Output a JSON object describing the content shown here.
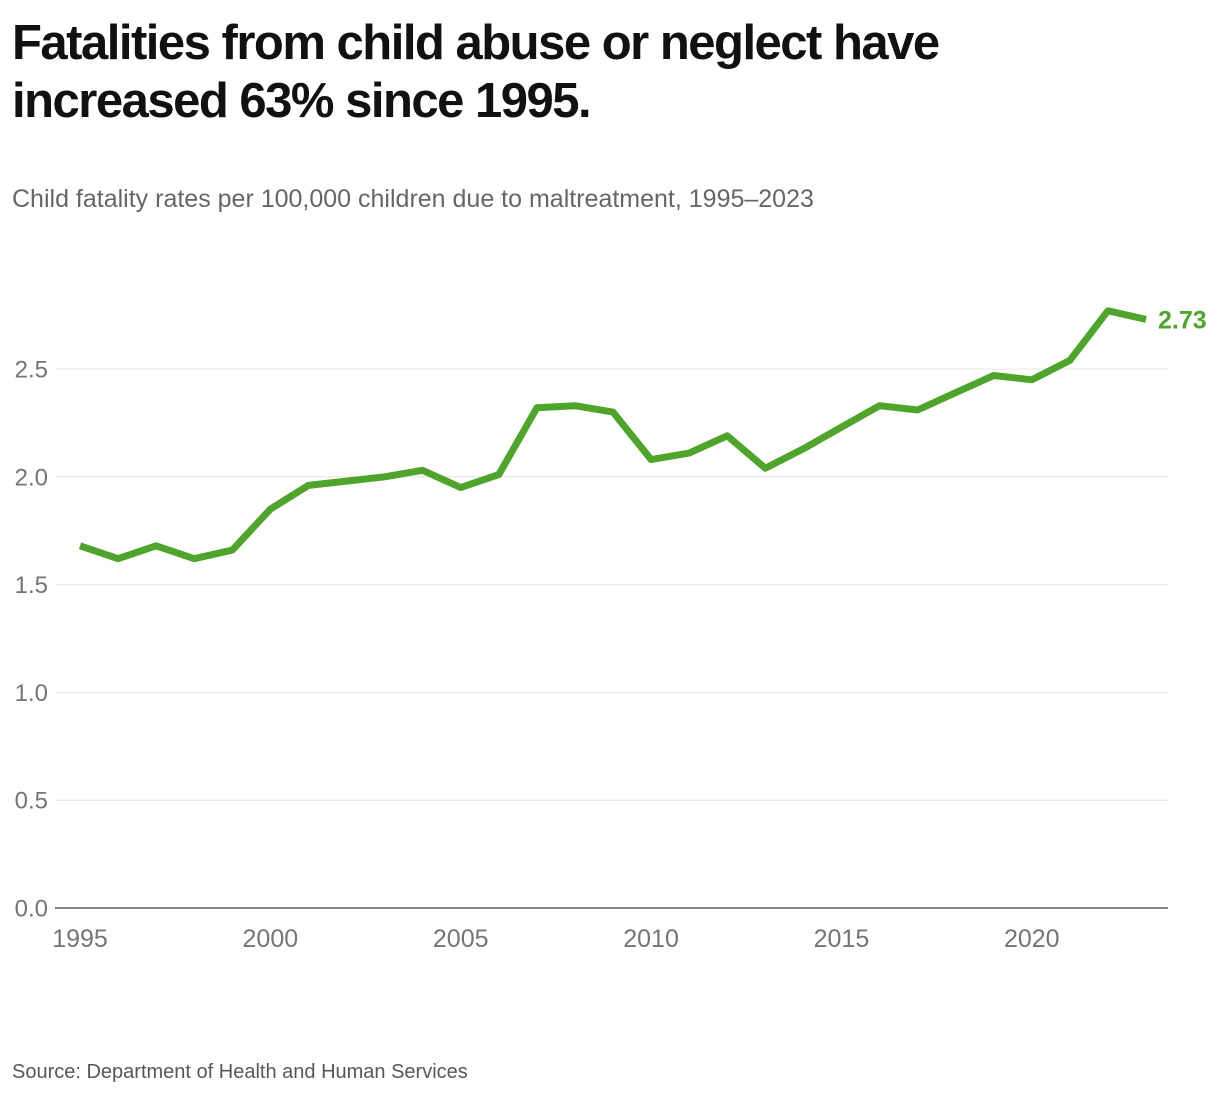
{
  "header": {
    "title": "Fatalities from child abuse or neglect have increased 63% since 1995.",
    "subtitle": "Child fatality rates per 100,000 children due to maltreatment, 1995–2023"
  },
  "chart_data": {
    "type": "line",
    "title": "Fatalities from child abuse or neglect have increased 63% since 1995.",
    "subtitle": "Child fatality rates per 100,000 children due to maltreatment, 1995–2023",
    "series_name": "Child fatality rate per 100,000 children",
    "x": [
      1995,
      1996,
      1997,
      1998,
      1999,
      2000,
      2001,
      2002,
      2003,
      2004,
      2005,
      2006,
      2007,
      2008,
      2009,
      2010,
      2011,
      2012,
      2013,
      2014,
      2015,
      2016,
      2017,
      2018,
      2019,
      2020,
      2021,
      2022,
      2023
    ],
    "values": [
      1.68,
      1.62,
      1.68,
      1.62,
      1.66,
      1.85,
      1.96,
      1.98,
      2.0,
      2.03,
      1.95,
      2.01,
      2.32,
      2.33,
      2.3,
      2.08,
      2.11,
      2.19,
      2.04,
      2.13,
      2.23,
      2.33,
      2.31,
      2.39,
      2.47,
      2.45,
      2.54,
      2.77,
      2.73
    ],
    "end_label": "2.73",
    "x_ticks": [
      1995,
      2000,
      2005,
      2010,
      2015,
      2020
    ],
    "y_ticks": [
      0.0,
      0.5,
      1.0,
      1.5,
      2.0,
      2.5
    ],
    "ylim": [
      0,
      2.9
    ],
    "grid": "horizontal",
    "legend": "none",
    "line_color": "#4fa52c",
    "gridline_color": "#e7e6e2",
    "axis_line_color": "#828282",
    "tick_label_color": "#757575"
  },
  "footer": {
    "source": "Source: Department of Health and Human Services"
  }
}
